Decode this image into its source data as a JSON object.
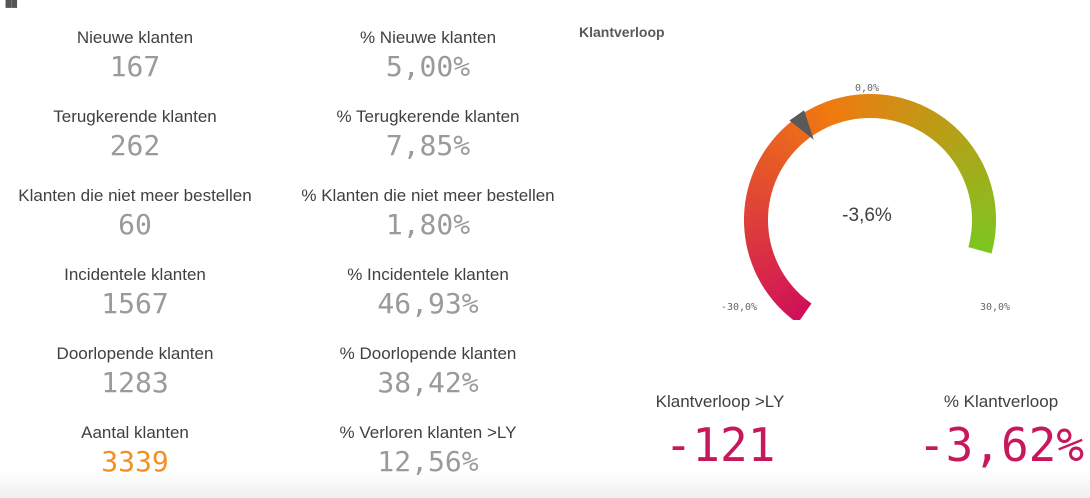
{
  "kpis_left": [
    {
      "label": "Nieuwe klanten",
      "value": "167"
    },
    {
      "label": "Terugkerende klanten",
      "value": "262"
    },
    {
      "label": "Klanten die niet meer bestellen",
      "value": "60"
    },
    {
      "label": "Incidentele klanten",
      "value": "1567"
    },
    {
      "label": "Doorlopende klanten",
      "value": "1283"
    },
    {
      "label": "Aantal klanten",
      "value": "3339"
    }
  ],
  "kpis_right": [
    {
      "label": "% Nieuwe klanten",
      "value": "5,00%"
    },
    {
      "label": "% Terugkerende klanten",
      "value": "7,85%"
    },
    {
      "label": "% Klanten die niet meer bestellen",
      "value": "1,80%"
    },
    {
      "label": "% Incidentele klanten",
      "value": "46,93%"
    },
    {
      "label": "% Doorlopende klanten",
      "value": "38,42%"
    },
    {
      "label": "% Verloren klanten >LY",
      "value": "12,56%"
    }
  ],
  "colors": {
    "accent_total": "#f39024",
    "accent_churn": "#c8185c",
    "value_grey": "#9a9a9a",
    "gauge_low": "#d0105a",
    "gauge_mid": "#f07a10",
    "gauge_high": "#7cc620"
  },
  "gauge": {
    "title": "Klantverloop",
    "min": -30,
    "max": 30,
    "target": 0,
    "value": -3.6,
    "center_label": "-3,6%",
    "min_label": "-30,0%",
    "max_label": "30,0%",
    "target_label": "0,0%"
  },
  "bottom_kpis": [
    {
      "label": "Klantverloop >LY",
      "value": "-121"
    },
    {
      "label": "% Klantverloop",
      "value": "-3,62%"
    }
  ]
}
